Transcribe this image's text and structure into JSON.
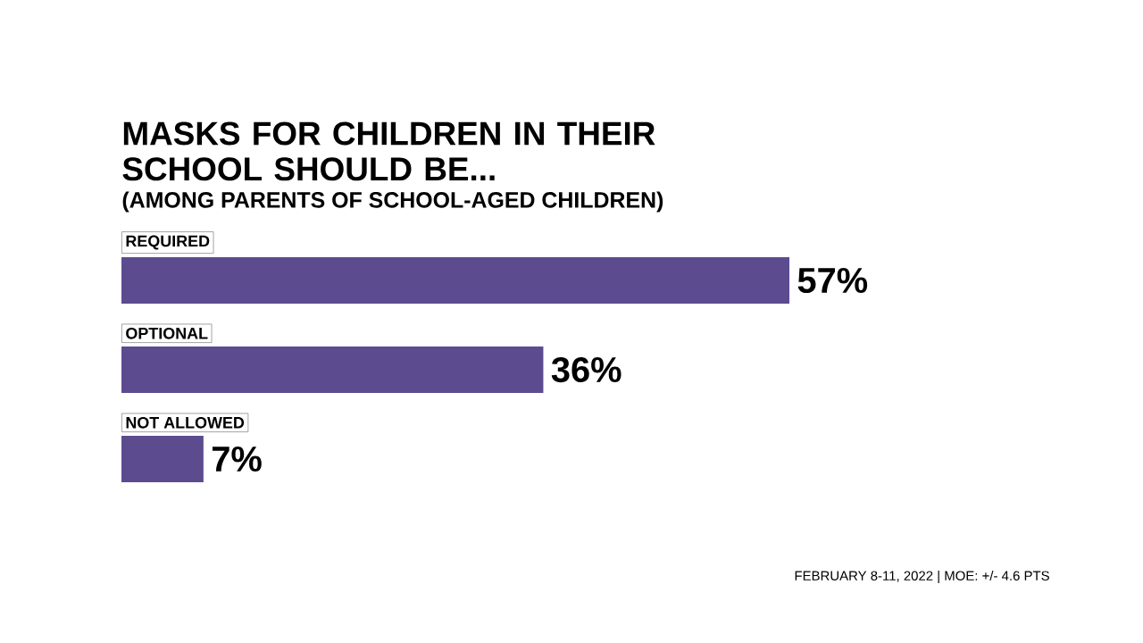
{
  "chart_data": {
    "type": "bar",
    "orientation": "horizontal",
    "title": "MASKS FOR CHILDREN IN THEIR SCHOOL SHOULD BE...",
    "subtitle": "(AMONG PARENTS OF SCHOOL-AGED CHILDREN)",
    "categories": [
      "REQUIRED",
      "OPTIONAL",
      "NOT ALLOWED"
    ],
    "values": [
      57,
      36,
      7
    ],
    "value_labels": [
      "57%",
      "36%",
      "7%"
    ],
    "color": "#5c4b8f",
    "annotations": [
      "FEBRUARY 8-11, 2022 | MOE: +/- 4.6 PTS"
    ]
  }
}
